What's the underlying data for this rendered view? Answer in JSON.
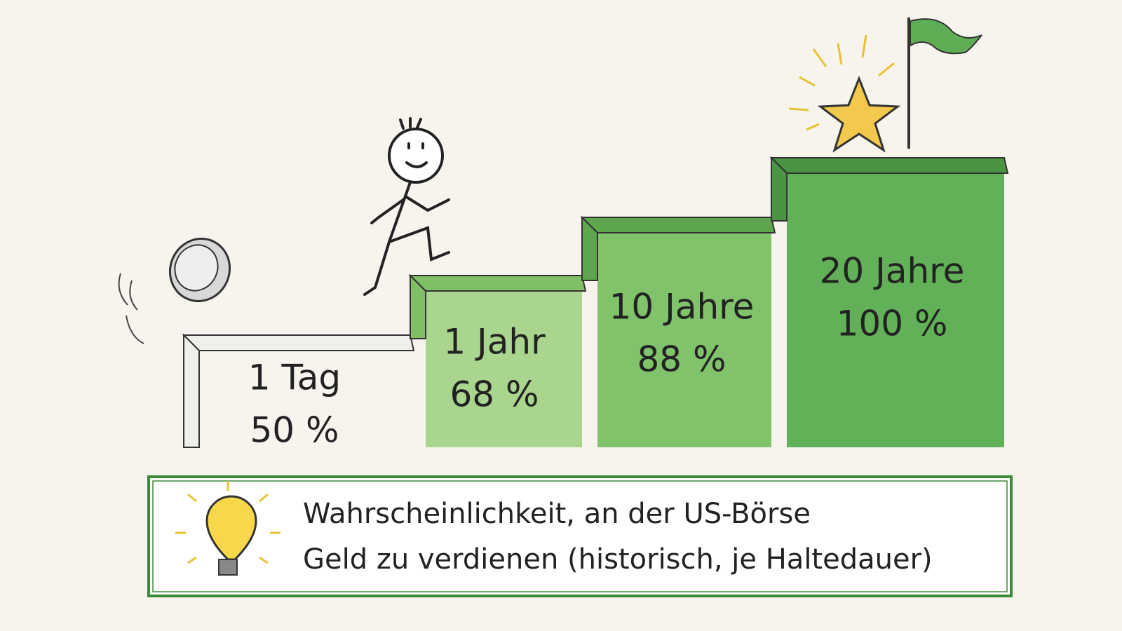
{
  "steps": [
    {
      "label": "1 Tag",
      "value": "50 %"
    },
    {
      "label": "1 Jahr",
      "value": "68 %"
    },
    {
      "label": "10 Jahre",
      "value": "88 %"
    },
    {
      "label": "20 Jahre",
      "value": "100 %"
    }
  ],
  "caption": {
    "line1": "Wahrscheinlichkeit, an der US-Börse",
    "line2": "Geld zu verdienen (historisch, je Haltedauer)"
  }
}
